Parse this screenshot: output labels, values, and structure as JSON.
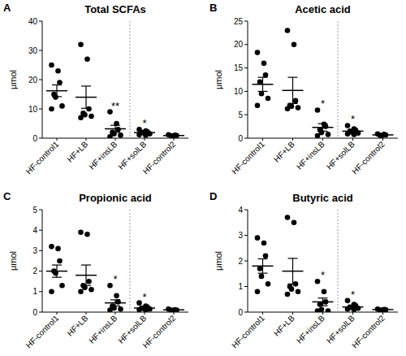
{
  "chart_data": [
    {
      "type": "dot",
      "panel_label": "A",
      "title": "Total SCFAs",
      "y_label": "μmol",
      "color": "#000000",
      "categories": [
        "HF-control1",
        "HF+LB",
        "HF+insLB",
        "HF+solLB",
        "HF-control2"
      ],
      "values": [
        [
          25,
          23,
          19,
          15,
          14,
          11,
          10
        ],
        [
          32,
          27,
          10,
          8.5,
          8,
          7.5,
          7
        ],
        [
          9,
          5,
          3,
          2,
          1.5,
          1,
          0.5
        ],
        [
          3,
          2.5,
          2.2,
          2,
          1.8,
          1.5,
          1.2,
          1
        ],
        [
          1.2,
          1,
          0.9,
          0.8,
          0.7
        ]
      ],
      "means": [
        16.2,
        14,
        3.2,
        1.9,
        0.9
      ],
      "errors": [
        2,
        3.8,
        1.2,
        0.3,
        0.1
      ],
      "significance": [
        null,
        null,
        "**",
        "*",
        null
      ],
      "ylim": [
        0,
        40
      ],
      "yticks": [
        0,
        10,
        20,
        30,
        40
      ]
    },
    {
      "type": "dot",
      "panel_label": "B",
      "title": "Acetic acid",
      "y_label": "μmol",
      "color": "#000000",
      "categories": [
        "HF-control1",
        "HF+LB",
        "HF+insLB",
        "HF+solLB",
        "HF-control2"
      ],
      "values": [
        [
          18.3,
          16,
          13.5,
          12,
          9.5,
          8.5,
          7
        ],
        [
          23,
          20,
          8,
          7,
          6.8,
          6.5,
          6.3
        ],
        [
          6,
          3,
          2.5,
          1.8,
          1.2,
          0.8,
          0.5
        ],
        [
          2.7,
          2,
          1.7,
          1.5,
          1.3,
          1.1,
          0.9,
          0.8
        ],
        [
          0.9,
          0.8,
          0.7,
          0.6,
          0.5
        ]
      ],
      "means": [
        11.5,
        10.2,
        2.3,
        1.5,
        0.7
      ],
      "errors": [
        1.5,
        2.8,
        0.8,
        0.25,
        0.07
      ],
      "significance": [
        null,
        null,
        "*",
        "*",
        null
      ],
      "ylim": [
        0,
        25
      ],
      "yticks": [
        0,
        5,
        10,
        15,
        20,
        25
      ]
    },
    {
      "type": "dot",
      "panel_label": "C",
      "title": "Propionic acid",
      "y_label": "μmol",
      "color": "#000000",
      "categories": [
        "HF-control1",
        "HF+LB",
        "HF+insLB",
        "HF+solLB",
        "HF-control2"
      ],
      "values": [
        [
          3.2,
          3.1,
          2.5,
          2,
          1.9,
          1.3,
          1
        ],
        [
          3.9,
          3.8,
          1.5,
          1.3,
          1.2,
          1.1,
          1
        ],
        [
          1.3,
          0.8,
          0.5,
          0.3,
          0.2,
          0.15,
          0.1
        ],
        [
          0.45,
          0.3,
          0.25,
          0.2,
          0.18,
          0.15,
          0.12,
          0.1
        ],
        [
          0.15,
          0.12,
          0.1,
          0.1,
          0.08
        ]
      ],
      "means": [
        2,
        1.8,
        0.45,
        0.2,
        0.11
      ],
      "errors": [
        0.3,
        0.5,
        0.15,
        0.04,
        0.01
      ],
      "significance": [
        null,
        null,
        "*",
        "*",
        null
      ],
      "ylim": [
        0,
        5
      ],
      "yticks": [
        0,
        1,
        2,
        3,
        4,
        5
      ]
    },
    {
      "type": "dot",
      "panel_label": "D",
      "title": "Butyric acid",
      "y_label": "μmol",
      "color": "#000000",
      "categories": [
        "HF-control1",
        "HF+LB",
        "HF+insLB",
        "HF+solLB",
        "HF-control2"
      ],
      "values": [
        [
          2.9,
          2.7,
          2.2,
          1.7,
          1.4,
          1.1,
          0.8
        ],
        [
          3.7,
          3.5,
          1.1,
          1,
          0.9,
          0.8,
          0.7
        ],
        [
          1.2,
          0.8,
          0.4,
          0.3,
          0.1,
          0.05,
          0.05
        ],
        [
          0.45,
          0.3,
          0.25,
          0.2,
          0.18,
          0.15,
          0.12,
          0.1
        ],
        [
          0.12,
          0.1,
          0.09,
          0.08,
          0.07
        ]
      ],
      "means": [
        1.8,
        1.6,
        0.4,
        0.2,
        0.1
      ],
      "errors": [
        0.28,
        0.5,
        0.15,
        0.04,
        0.01
      ],
      "significance": [
        null,
        null,
        "*",
        "*",
        null
      ],
      "ylim": [
        0,
        4
      ],
      "yticks": [
        0,
        1,
        2,
        3,
        4
      ]
    }
  ]
}
